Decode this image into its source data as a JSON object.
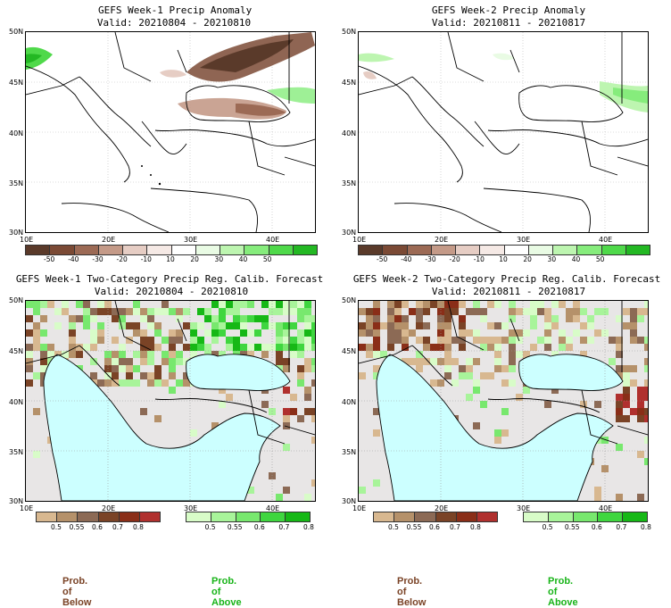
{
  "panels": {
    "p1": {
      "title": "GEFS Week-1 Precip Anomaly",
      "valid": "Valid: 20210804 - 20210810"
    },
    "p2": {
      "title": "GEFS Week-2 Precip Anomaly",
      "valid": "Valid: 20210811 - 20210817"
    },
    "p3": {
      "title": "GEFS Week-1 Two-Category Precip Reg. Calib. Forecast",
      "valid": "Valid: 20210804 - 20210810"
    },
    "p4": {
      "title": "GEFS Week-2 Two-Category Precip Reg. Calib. Forecast",
      "valid": "Valid: 20210811 - 20210817"
    }
  },
  "axes": {
    "lat_labels": [
      "50N",
      "45N",
      "40N",
      "35N",
      "30N"
    ],
    "lon_labels": [
      "10E",
      "20E",
      "30E",
      "40E"
    ]
  },
  "anomaly_colorbar": {
    "labels": [
      "-50",
      "-40",
      "-30",
      "-20",
      "-10",
      "10",
      "20",
      "30",
      "40",
      "50"
    ],
    "colors": [
      "#5a3a2a",
      "#7b4a35",
      "#9c6a55",
      "#c49a88",
      "#e6cdc4",
      "#f5e9e5",
      "#ffffff",
      "#e9fbe4",
      "#bdf5b0",
      "#86ec7c",
      "#4fd94a",
      "#23b823"
    ]
  },
  "prob_below_colorbar": {
    "labels": [
      "0.5",
      "0.55",
      "0.6",
      "0.7",
      "0.8"
    ],
    "colors": [
      "#d8b890",
      "#b5916a",
      "#8c6a55",
      "#7a4326",
      "#8a2e18",
      "#b0302e"
    ]
  },
  "prob_above_colorbar": {
    "labels": [
      "0.5",
      "0.55",
      "0.6",
      "0.7",
      "0.8"
    ],
    "colors": [
      "#d8fcc8",
      "#a8f49a",
      "#78e86e",
      "#3fd63f",
      "#16b816"
    ]
  },
  "legend": {
    "below": "Prob. of Below",
    "above": "Prob. of Above"
  },
  "colors": {
    "below_text": "#7a4326",
    "above_text": "#18b418",
    "sea": "#ccffff",
    "land_gray": "#e8e6e6"
  }
}
